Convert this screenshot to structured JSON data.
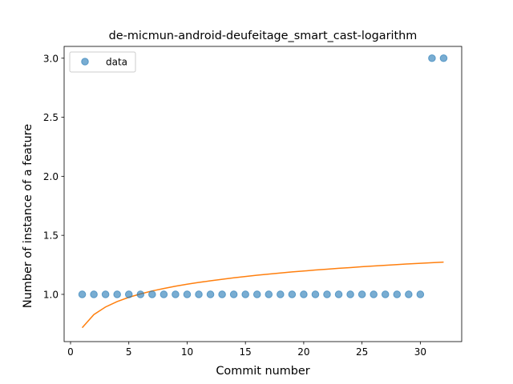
{
  "chart_data": {
    "type": "scatter",
    "title": "de-micmun-android-deufeitage_smart_cast-logarithm",
    "xlabel": "Commit number",
    "ylabel": "Number of instance of a feature",
    "xlim": [
      -0.55,
      33.55
    ],
    "ylim": [
      0.6,
      3.1
    ],
    "xticks": [
      0,
      5,
      10,
      15,
      20,
      25,
      30
    ],
    "xtick_labels": [
      "0",
      "5",
      "10",
      "15",
      "20",
      "25",
      "30"
    ],
    "yticks": [
      1.0,
      1.5,
      2.0,
      2.5,
      3.0
    ],
    "ytick_labels": [
      "1.0",
      "1.5",
      "2.0",
      "2.5",
      "3.0"
    ],
    "grid": false,
    "legend": {
      "position": "upper left",
      "entries": [
        "data"
      ]
    },
    "series": [
      {
        "name": "data",
        "kind": "scatter",
        "color": "#1f77b4",
        "x": [
          1,
          2,
          3,
          4,
          5,
          6,
          7,
          8,
          9,
          10,
          11,
          12,
          13,
          14,
          15,
          16,
          17,
          18,
          19,
          20,
          21,
          22,
          23,
          24,
          25,
          26,
          27,
          28,
          29,
          30,
          31,
          32
        ],
        "y": [
          1,
          1,
          1,
          1,
          1,
          1,
          1,
          1,
          1,
          1,
          1,
          1,
          1,
          1,
          1,
          1,
          1,
          1,
          1,
          1,
          1,
          1,
          1,
          1,
          1,
          1,
          1,
          1,
          1,
          1,
          3,
          3
        ]
      },
      {
        "kind": "line",
        "color": "#ff7f0e",
        "x": [
          1,
          2,
          3,
          4,
          5,
          6,
          7,
          8,
          9,
          10,
          11,
          12,
          13,
          14,
          15,
          16,
          17,
          18,
          19,
          20,
          21,
          22,
          23,
          24,
          25,
          26,
          27,
          28,
          29,
          30,
          31,
          32
        ],
        "y": [
          0.718,
          0.829,
          0.893,
          0.939,
          0.975,
          1.004,
          1.029,
          1.05,
          1.069,
          1.086,
          1.101,
          1.115,
          1.128,
          1.14,
          1.151,
          1.162,
          1.172,
          1.181,
          1.19,
          1.198,
          1.206,
          1.213,
          1.221,
          1.227,
          1.234,
          1.24,
          1.246,
          1.252,
          1.258,
          1.263,
          1.268,
          1.273
        ]
      }
    ]
  }
}
